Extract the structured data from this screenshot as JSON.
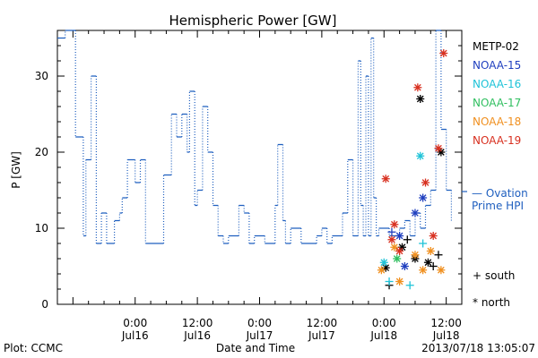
{
  "chart_data": {
    "type": "line",
    "title": "Hemispheric Power [GW]",
    "ylabel": "P [GW]",
    "xlabel": "Date and Time",
    "ylim": [
      0,
      36
    ],
    "xlim": [
      "2013-07-15 09:00",
      "2013-07-18 15:00"
    ],
    "y_ticks": [
      0,
      10,
      20,
      30
    ],
    "x_ticks": [
      {
        "time": "2013-07-16 00:00",
        "line1": "0:00",
        "line2": "Jul16"
      },
      {
        "time": "2013-07-16 12:00",
        "line1": "12:00",
        "line2": "Jul16"
      },
      {
        "time": "2013-07-17 00:00",
        "line1": "0:00",
        "line2": "Jul17"
      },
      {
        "time": "2013-07-17 12:00",
        "line1": "12:00",
        "line2": "Jul17"
      },
      {
        "time": "2013-07-18 00:00",
        "line1": "0:00",
        "line2": "Jul18"
      },
      {
        "time": "2013-07-18 12:00",
        "line1": "12:00",
        "line2": "Jul18"
      }
    ],
    "grid": false,
    "ovation": {
      "name": "— Ovation Prime HPI",
      "line1": "— Ovation",
      "line2": "Prime HPI",
      "color": "#1f5fbf",
      "x": [
        "2013-07-15 09:00",
        "2013-07-15 09:45",
        "2013-07-15 10:30",
        "2013-07-15 12:00",
        "2013-07-15 12:30",
        "2013-07-15 14:00",
        "2013-07-15 14:30",
        "2013-07-15 15:30",
        "2013-07-15 16:30",
        "2013-07-15 17:00",
        "2013-07-15 17:30",
        "2013-07-15 18:30",
        "2013-07-15 19:00",
        "2013-07-15 20:00",
        "2013-07-15 21:00",
        "2013-07-15 21:30",
        "2013-07-15 22:30",
        "2013-07-16 00:00",
        "2013-07-16 01:00",
        "2013-07-16 02:00",
        "2013-07-16 03:00",
        "2013-07-16 04:00",
        "2013-07-16 05:00",
        "2013-07-16 05:30",
        "2013-07-16 07:00",
        "2013-07-16 08:00",
        "2013-07-16 09:00",
        "2013-07-16 10:00",
        "2013-07-16 10:30",
        "2013-07-16 11:30",
        "2013-07-16 12:00",
        "2013-07-16 13:00",
        "2013-07-16 14:00",
        "2013-07-16 15:00",
        "2013-07-16 16:00",
        "2013-07-16 17:00",
        "2013-07-16 18:00",
        "2013-07-16 19:00",
        "2013-07-16 20:00",
        "2013-07-16 21:00",
        "2013-07-16 22:00",
        "2013-07-16 23:00",
        "2013-07-17 00:00",
        "2013-07-17 01:00",
        "2013-07-17 02:00",
        "2013-07-17 03:00",
        "2013-07-17 03:30",
        "2013-07-17 04:30",
        "2013-07-17 05:00",
        "2013-07-17 06:00",
        "2013-07-17 07:00",
        "2013-07-17 08:00",
        "2013-07-17 09:00",
        "2013-07-17 10:00",
        "2013-07-17 11:00",
        "2013-07-17 12:00",
        "2013-07-17 13:00",
        "2013-07-17 14:00",
        "2013-07-17 15:00",
        "2013-07-17 16:00",
        "2013-07-17 17:00",
        "2013-07-17 18:00",
        "2013-07-17 19:00",
        "2013-07-17 19:30",
        "2013-07-17 20:00",
        "2013-07-17 20:30",
        "2013-07-17 21:00",
        "2013-07-17 21:30",
        "2013-07-17 22:00",
        "2013-07-17 22:30",
        "2013-07-17 23:00",
        "2013-07-18 00:00",
        "2013-07-18 01:00",
        "2013-07-18 02:00",
        "2013-07-18 03:00",
        "2013-07-18 04:00",
        "2013-07-18 05:00",
        "2013-07-18 06:00",
        "2013-07-18 07:00",
        "2013-07-18 08:00",
        "2013-07-18 09:00",
        "2013-07-18 10:00",
        "2013-07-18 11:00",
        "2013-07-18 12:00",
        "2013-07-18 13:00"
      ],
      "y": [
        35,
        35,
        36,
        36,
        22,
        9,
        19,
        30,
        8,
        8,
        12,
        8,
        8,
        11,
        12,
        14,
        19,
        16,
        19,
        8,
        8,
        8,
        8,
        17,
        25,
        22,
        25,
        20,
        28,
        13,
        15,
        26,
        20,
        13,
        9,
        8,
        9,
        9,
        13,
        12,
        8,
        9,
        9,
        8,
        8,
        13,
        21,
        11,
        8,
        10,
        10,
        8,
        8,
        8,
        9,
        10,
        8,
        9,
        9,
        12,
        19,
        9,
        32,
        13,
        9,
        30,
        9,
        35,
        14,
        9,
        10,
        10,
        9,
        9,
        10,
        11,
        9,
        12,
        10,
        13,
        15,
        36,
        23,
        15,
        11
      ]
    },
    "satellites": [
      {
        "name": "METP-02",
        "color": "#000000"
      },
      {
        "name": "NOAA-15",
        "color": "#1f3fbf"
      },
      {
        "name": "NOAA-16",
        "color": "#1fc3d8"
      },
      {
        "name": "NOAA-17",
        "color": "#2fbf5f"
      },
      {
        "name": "NOAA-18",
        "color": "#f09020"
      },
      {
        "name": "NOAA-19",
        "color": "#d83020"
      }
    ],
    "marker_legend": [
      {
        "symbol": "+",
        "label": "south"
      },
      {
        "symbol": "*",
        "label": "north"
      }
    ],
    "observations": [
      {
        "sat": 0,
        "marker": "north",
        "x": "2013-07-18 00:20",
        "y": 4.8
      },
      {
        "sat": 0,
        "marker": "south",
        "x": "2013-07-18 01:00",
        "y": 2.5
      },
      {
        "sat": 0,
        "marker": "north",
        "x": "2013-07-18 03:30",
        "y": 7.5
      },
      {
        "sat": 0,
        "marker": "south",
        "x": "2013-07-18 04:30",
        "y": 8.5
      },
      {
        "sat": 0,
        "marker": "north",
        "x": "2013-07-18 06:00",
        "y": 6.0
      },
      {
        "sat": 0,
        "marker": "north",
        "x": "2013-07-18 07:00",
        "y": 27.0
      },
      {
        "sat": 0,
        "marker": "north",
        "x": "2013-07-18 08:30",
        "y": 5.5
      },
      {
        "sat": 0,
        "marker": "south",
        "x": "2013-07-18 09:30",
        "y": 5.0
      },
      {
        "sat": 0,
        "marker": "north",
        "x": "2013-07-18 11:00",
        "y": 20.0
      },
      {
        "sat": 0,
        "marker": "south",
        "x": "2013-07-18 10:30",
        "y": 6.5
      },
      {
        "sat": 1,
        "marker": "south",
        "x": "2013-07-18 01:30",
        "y": 9.5
      },
      {
        "sat": 1,
        "marker": "north",
        "x": "2013-07-18 03:00",
        "y": 9.0
      },
      {
        "sat": 1,
        "marker": "north",
        "x": "2013-07-18 04:00",
        "y": 5.0
      },
      {
        "sat": 1,
        "marker": "north",
        "x": "2013-07-18 06:00",
        "y": 12.0
      },
      {
        "sat": 1,
        "marker": "north",
        "x": "2013-07-18 07:30",
        "y": 14.0
      },
      {
        "sat": 2,
        "marker": "north",
        "x": "2013-07-18 00:00",
        "y": 5.5
      },
      {
        "sat": 2,
        "marker": "south",
        "x": "2013-07-18 01:00",
        "y": 3.0
      },
      {
        "sat": 2,
        "marker": "south",
        "x": "2013-07-18 05:00",
        "y": 2.5
      },
      {
        "sat": 2,
        "marker": "north",
        "x": "2013-07-18 07:00",
        "y": 19.5
      },
      {
        "sat": 2,
        "marker": "south",
        "x": "2013-07-18 07:30",
        "y": 8.0
      },
      {
        "sat": 3,
        "marker": "north",
        "x": "2013-07-18 02:30",
        "y": 6.0
      },
      {
        "sat": 4,
        "marker": "north",
        "x": "2013-07-17 23:30",
        "y": 4.5
      },
      {
        "sat": 4,
        "marker": "north",
        "x": "2013-07-18 02:00",
        "y": 7.5
      },
      {
        "sat": 4,
        "marker": "north",
        "x": "2013-07-18 03:00",
        "y": 3.0
      },
      {
        "sat": 4,
        "marker": "north",
        "x": "2013-07-18 06:00",
        "y": 6.5
      },
      {
        "sat": 4,
        "marker": "north",
        "x": "2013-07-18 07:30",
        "y": 4.5
      },
      {
        "sat": 4,
        "marker": "north",
        "x": "2013-07-18 09:00",
        "y": 7.0
      },
      {
        "sat": 4,
        "marker": "north",
        "x": "2013-07-18 11:00",
        "y": 4.5
      },
      {
        "sat": 5,
        "marker": "north",
        "x": "2013-07-18 00:20",
        "y": 16.5
      },
      {
        "sat": 5,
        "marker": "north",
        "x": "2013-07-18 01:30",
        "y": 8.5
      },
      {
        "sat": 5,
        "marker": "north",
        "x": "2013-07-18 02:00",
        "y": 10.5
      },
      {
        "sat": 5,
        "marker": "north",
        "x": "2013-07-18 03:00",
        "y": 7.0
      },
      {
        "sat": 5,
        "marker": "north",
        "x": "2013-07-18 06:30",
        "y": 28.5
      },
      {
        "sat": 5,
        "marker": "north",
        "x": "2013-07-18 08:00",
        "y": 16.0
      },
      {
        "sat": 5,
        "marker": "north",
        "x": "2013-07-18 09:30",
        "y": 9.0
      },
      {
        "sat": 5,
        "marker": "north",
        "x": "2013-07-18 10:30",
        "y": 20.5
      },
      {
        "sat": 5,
        "marker": "north",
        "x": "2013-07-18 11:30",
        "y": 33.0
      }
    ]
  },
  "footer": {
    "plot_source": "Plot: CCMC",
    "timestamp": "2013/07/18 13:05:07"
  }
}
